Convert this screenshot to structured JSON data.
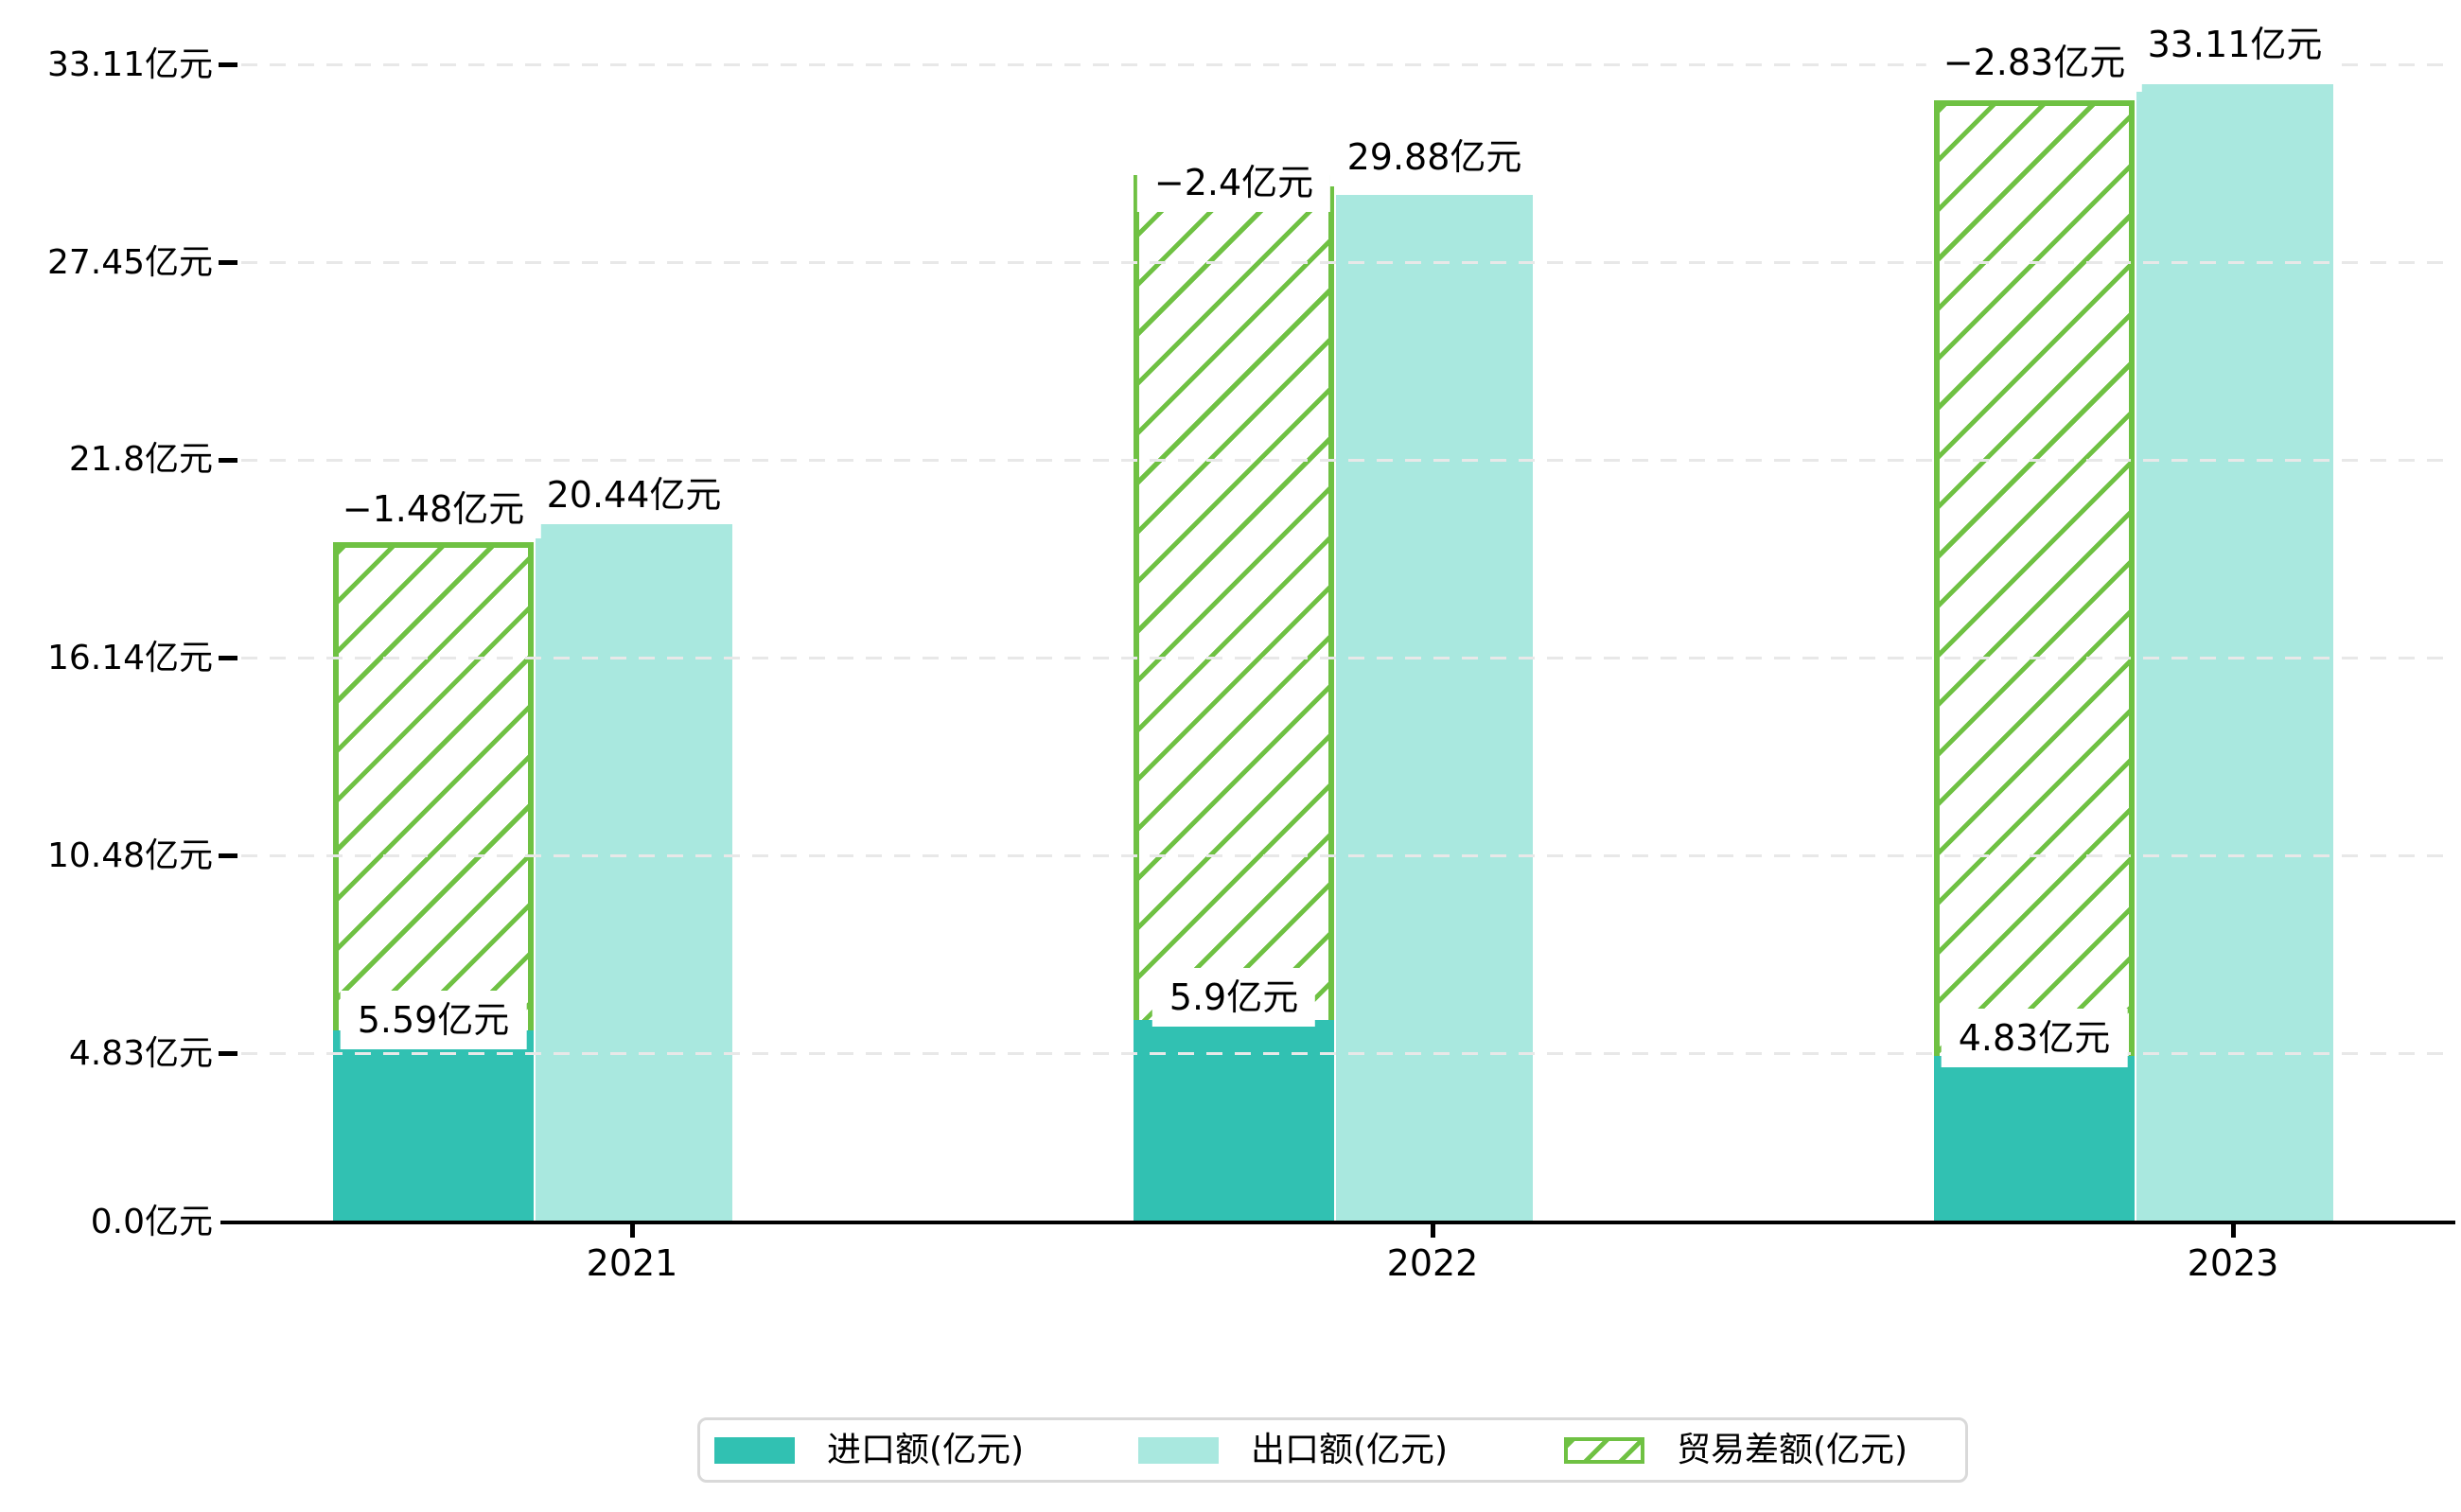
{
  "chart_data": {
    "type": "bar",
    "title": "",
    "categories": [
      "2021",
      "2022",
      "2023"
    ],
    "unit": "亿元",
    "series": [
      {
        "name": "进口额(亿元)",
        "values": [
          5.59,
          5.9,
          4.83
        ],
        "data_labels": [
          "5.59亿元",
          "5.9亿元",
          "4.83亿元"
        ],
        "color": "#31c1b2",
        "style": "solid"
      },
      {
        "name": "出口额(亿元)",
        "values": [
          20.44,
          29.88,
          33.11
        ],
        "data_labels": [
          "20.44亿元",
          "29.88亿元",
          "33.11亿元"
        ],
        "color": "#a9e8df",
        "style": "solid"
      },
      {
        "name": "贸易差额(亿元)",
        "values": [
          -1.48,
          -2.4,
          -2.83
        ],
        "data_labels": [
          "−1.48亿元",
          "−2.4亿元",
          "−2.83亿元"
        ],
        "color": "#6fc143",
        "style": "hatched"
      }
    ],
    "y_axis": {
      "tick_values": [
        0,
        4.83,
        10.48,
        16.14,
        21.8,
        27.45,
        33.11
      ],
      "tick_labels": [
        "0.0亿元",
        "4.83亿元",
        "10.48亿元",
        "16.14亿元",
        "21.8亿元",
        "27.45亿元",
        "33.11亿元"
      ],
      "range": [
        0,
        34.9
      ]
    },
    "x_axis": {
      "tick_labels": [
        "2021",
        "2022",
        "2023"
      ]
    },
    "grid": "horizontal-dashed",
    "legend_position": "bottom-center"
  },
  "legend": {
    "items": [
      {
        "label": "进口额(亿元)",
        "swatch": "solid-teal"
      },
      {
        "label": "出口额(亿元)",
        "swatch": "solid-light-teal"
      },
      {
        "label": "贸易差额(亿元)",
        "swatch": "hatched-green"
      }
    ]
  },
  "colors": {
    "import": "#31c1b2",
    "export": "#a9e8df",
    "trade_diff": "#6fc143",
    "grid": "#e8e8e8",
    "axis": "#000000",
    "text": "#000000",
    "legend_border": "#d9d9d9",
    "background": "#ffffff",
    "label_box_background": "#ffffff"
  }
}
